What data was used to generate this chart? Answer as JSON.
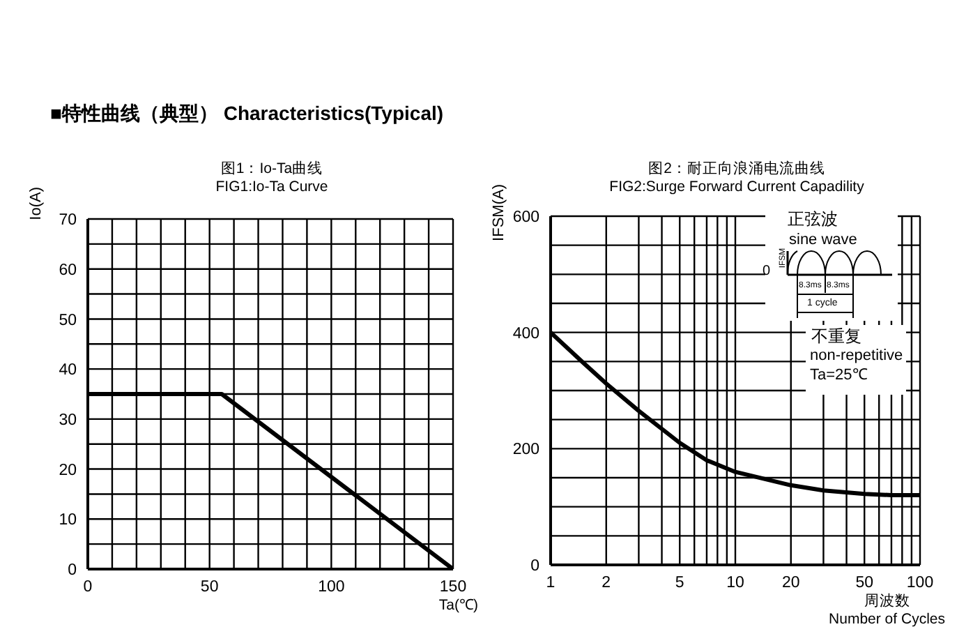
{
  "chart_data": [
    {
      "type": "line",
      "title": "图1：Io-Ta曲线",
      "subtitle": "FIG1:Io-Ta Curve",
      "xlabel": "Ta(℃)",
      "ylabel": "Io(A)",
      "annotations": [
        "■特性曲线（典型） Characteristics(Typical)"
      ],
      "x": [
        0,
        55,
        150
      ],
      "series": [
        {
          "color": "#000000",
          "values": [
            35,
            35,
            0
          ]
        }
      ],
      "xlim": [
        0,
        150
      ],
      "xticks": [
        0,
        {
          "value": 10,
          "label": null
        },
        {
          "value": 20,
          "label": null
        },
        {
          "value": 30,
          "label": null
        },
        {
          "value": 40,
          "label": null
        },
        50,
        {
          "value": 60,
          "label": null
        },
        {
          "value": 70,
          "label": null
        },
        {
          "value": 80,
          "label": null
        },
        {
          "value": 90,
          "label": null
        },
        100,
        {
          "value": 110,
          "label": null
        },
        {
          "value": 120,
          "label": null
        },
        {
          "value": 130,
          "label": null
        },
        {
          "value": 140,
          "label": null
        },
        150
      ],
      "ylim": [
        0,
        70
      ],
      "yticks": [
        0,
        {
          "value": 5,
          "label": null
        },
        10,
        {
          "value": 15,
          "label": null
        },
        20,
        {
          "value": 25,
          "label": null
        },
        30,
        {
          "value": 35,
          "label": null
        },
        40,
        {
          "value": 45,
          "label": null
        },
        50,
        {
          "value": 55,
          "label": null
        },
        60,
        {
          "value": 65,
          "label": null
        },
        70
      ],
      "grid": true,
      "marker": "none"
    },
    {
      "type": "line",
      "title": "图2：耐正向浪涌电流曲线",
      "subtitle": "FIG2:Surge Forward Current Capadility",
      "xlabel": "周波数\nNumber of Cycles",
      "ylabel": "IFSM(A)",
      "annotations": [
        "正弦波",
        "sine wave",
        "IFSM",
        "0",
        "8.3ms",
        "8.3ms",
        "1 cycle",
        "不重复",
        "non-repetitive",
        "Ta=25℃"
      ],
      "x": [
        1,
        1.5,
        2,
        3,
        5,
        7,
        10,
        20,
        30,
        50,
        70,
        100
      ],
      "series": [
        {
          "color": "#000000",
          "values": [
            400,
            348,
            312,
            265,
            210,
            180,
            160,
            137,
            128,
            122,
            120,
            120
          ]
        }
      ],
      "log": "x",
      "xlim": [
        1,
        100
      ],
      "xticks": [
        1,
        2,
        {
          "value": 3,
          "label": null
        },
        {
          "value": 4,
          "label": null
        },
        5,
        {
          "value": 6,
          "label": null
        },
        {
          "value": 7,
          "label": null
        },
        {
          "value": 8,
          "label": null
        },
        {
          "value": 9,
          "label": null
        },
        10,
        20,
        {
          "value": 30,
          "label": null
        },
        {
          "value": 40,
          "label": null
        },
        50,
        {
          "value": 60,
          "label": null
        },
        {
          "value": 70,
          "label": null
        },
        {
          "value": 80,
          "label": null
        },
        {
          "value": 90,
          "label": null
        },
        100
      ],
      "ylim": [
        0,
        600
      ],
      "yticks": [
        0,
        {
          "value": 50,
          "label": null
        },
        {
          "value": 100,
          "label": null
        },
        {
          "value": 150,
          "label": null
        },
        200,
        {
          "value": 250,
          "label": null
        },
        {
          "value": 300,
          "label": null
        },
        {
          "value": 350,
          "label": null
        },
        400,
        {
          "value": 450,
          "label": null
        },
        {
          "value": 500,
          "label": null
        },
        {
          "value": 550,
          "label": null
        },
        600
      ],
      "grid": true,
      "marker": "none"
    }
  ]
}
